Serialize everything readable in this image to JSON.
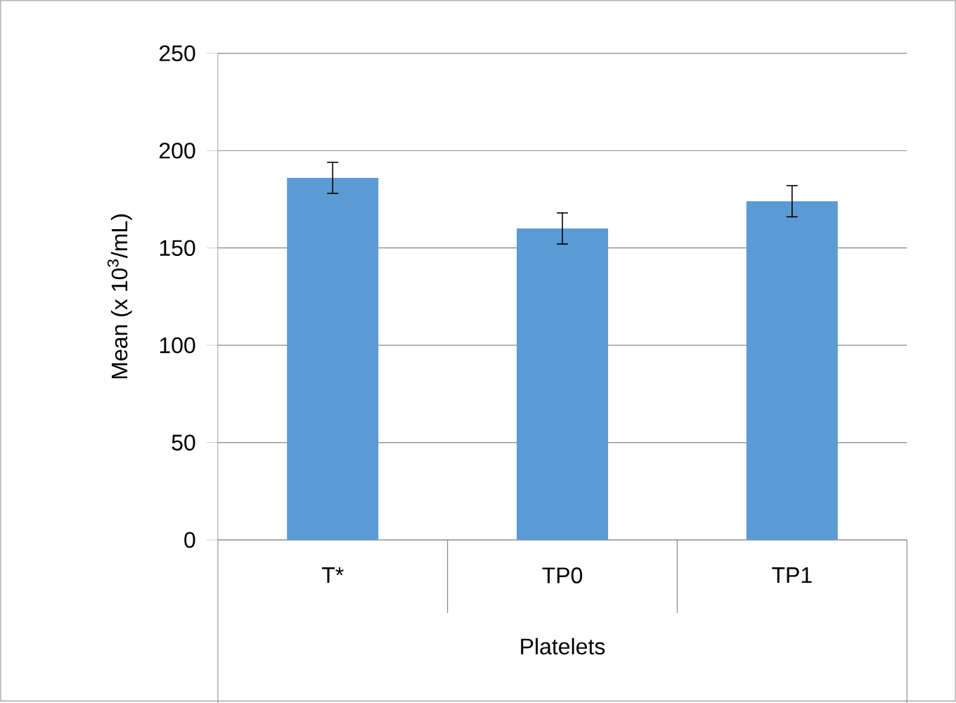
{
  "chart_data": {
    "type": "bar",
    "xlabel": "Platelets",
    "ylabel": "Mean (x 10$^{3}$/mL)",
    "categories": [
      "T*",
      "TP0",
      "TP1"
    ],
    "values": [
      186,
      160,
      174
    ],
    "errors": [
      8,
      8,
      8
    ],
    "color": "#5b9bd5",
    "ylim": [
      0,
      250
    ],
    "yticks": [
      0,
      50,
      100,
      150,
      200,
      250
    ],
    "grid": "y"
  }
}
